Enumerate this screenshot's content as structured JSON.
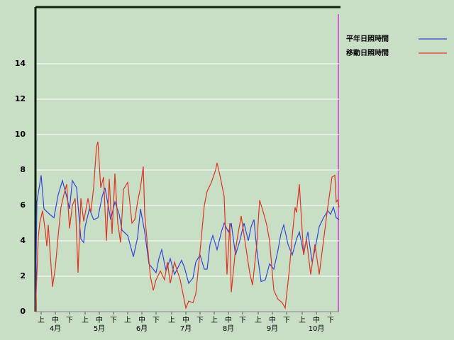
{
  "chart_data": {
    "type": "line",
    "xlim": [
      0,
      214
    ],
    "ylim": [
      0,
      17.2
    ],
    "yticks": [
      0,
      2,
      4,
      6,
      8,
      10,
      12,
      14
    ],
    "grid": true,
    "legend": "top-right",
    "xticks": [
      {
        "value": 4,
        "label": "上"
      },
      {
        "value": 14,
        "label": "中"
      },
      {
        "value": 24,
        "label": "下"
      },
      {
        "value": 35,
        "label": "上"
      },
      {
        "value": 45,
        "label": "中"
      },
      {
        "value": 55,
        "label": "下"
      },
      {
        "value": 65,
        "label": "上"
      },
      {
        "value": 75,
        "label": "中"
      },
      {
        "value": 85,
        "label": "下"
      },
      {
        "value": 96,
        "label": "上"
      },
      {
        "value": 106,
        "label": "中"
      },
      {
        "value": 116,
        "label": "下"
      },
      {
        "value": 126,
        "label": "上"
      },
      {
        "value": 136,
        "label": "中"
      },
      {
        "value": 146,
        "label": "下"
      },
      {
        "value": 157,
        "label": "上"
      },
      {
        "value": 167,
        "label": "中"
      },
      {
        "value": 177,
        "label": "下"
      },
      {
        "value": 188,
        "label": "上"
      },
      {
        "value": 198,
        "label": "中"
      },
      {
        "value": 208,
        "label": "下"
      }
    ],
    "months": [
      "4月",
      "5月",
      "6月",
      "7月",
      "8月",
      "9月",
      "10月"
    ],
    "series": [
      {
        "name": "平年日照時間",
        "color": "#3344dd",
        "x": [
          0,
          1,
          4,
          6,
          10,
          13,
          16,
          19,
          22,
          24,
          26,
          29,
          32,
          34,
          35,
          38,
          41,
          44,
          47,
          49,
          53,
          56,
          59,
          61,
          65,
          69,
          72,
          74,
          77,
          80,
          83,
          85,
          87,
          89,
          92,
          95,
          98,
          103,
          105,
          108,
          111,
          113,
          116,
          119,
          121,
          123,
          125,
          128,
          131,
          133,
          136,
          138,
          141,
          144,
          147,
          150,
          152,
          154,
          156,
          159,
          162,
          165,
          168,
          171,
          173,
          175,
          178,
          181,
          184,
          186,
          189,
          192,
          195,
          197,
          200,
          203,
          206,
          208,
          210,
          212,
          214
        ],
        "values": [
          0,
          6.2,
          7.7,
          5.8,
          5.5,
          5.3,
          6.6,
          7.4,
          6.5,
          5.8,
          7.4,
          7.0,
          4.1,
          3.9,
          4.8,
          5.8,
          5.2,
          5.3,
          6.5,
          7.0,
          5.2,
          6.2,
          5.5,
          4.6,
          4.3,
          3.1,
          4.2,
          5.8,
          4.5,
          2.7,
          2.4,
          2.2,
          3.0,
          3.5,
          2.3,
          3.0,
          2.1,
          2.9,
          2.5,
          1.6,
          1.9,
          2.8,
          3.2,
          2.4,
          2.4,
          3.8,
          4.3,
          3.5,
          4.5,
          5.0,
          4.5,
          5.0,
          3.2,
          4.0,
          5.0,
          4.0,
          4.8,
          5.2,
          3.5,
          1.7,
          1.8,
          2.7,
          2.4,
          3.5,
          4.4,
          4.9,
          3.8,
          3.2,
          4.1,
          4.5,
          3.3,
          4.5,
          2.8,
          3.5,
          4.8,
          5.3,
          5.7,
          5.5,
          5.9,
          5.3,
          5.2
        ]
      },
      {
        "name": "移動日照時間",
        "color": "#e03322",
        "x": [
          0,
          2,
          3,
          5,
          7,
          8,
          9,
          12,
          14,
          16,
          18,
          20,
          22,
          24,
          26,
          28,
          30,
          32,
          34,
          37,
          39,
          41,
          43,
          44,
          46,
          48,
          50,
          52,
          54,
          56,
          58,
          60,
          62,
          65,
          68,
          70,
          72,
          74,
          76,
          77,
          79,
          81,
          83,
          85,
          88,
          91,
          93,
          95,
          98,
          100,
          102,
          104,
          106,
          108,
          111,
          113,
          116,
          119,
          121,
          124,
          127,
          128,
          130,
          133,
          135,
          137,
          138,
          141,
          143,
          145,
          148,
          151,
          153,
          156,
          158,
          161,
          163,
          165,
          168,
          171,
          174,
          176,
          179,
          181,
          183,
          184,
          186,
          189,
          191,
          194,
          197,
          200,
          203,
          206,
          209,
          211,
          212,
          213,
          214
        ],
        "values": [
          0,
          4.2,
          5.0,
          5.7,
          4.5,
          3.7,
          4.9,
          1.4,
          2.5,
          4.3,
          5.9,
          6.6,
          7.2,
          4.7,
          6.0,
          6.4,
          2.2,
          6.4,
          5.1,
          6.4,
          5.6,
          7.0,
          9.3,
          9.6,
          7.0,
          7.6,
          4.0,
          7.5,
          4.4,
          7.8,
          5.0,
          3.9,
          6.9,
          7.3,
          5.0,
          5.2,
          6.2,
          7.0,
          8.2,
          5.5,
          3.7,
          2.0,
          1.2,
          1.8,
          2.3,
          1.8,
          2.8,
          1.6,
          2.8,
          2.3,
          1.8,
          1.0,
          0.2,
          0.6,
          0.5,
          1.0,
          3.4,
          6.0,
          6.8,
          7.3,
          8.0,
          8.4,
          7.7,
          6.5,
          2.1,
          5.0,
          1.1,
          3.5,
          4.5,
          5.4,
          3.8,
          2.2,
          1.5,
          3.8,
          6.3,
          5.5,
          4.9,
          4.0,
          1.2,
          0.7,
          0.5,
          0.2,
          2.4,
          4.3,
          5.9,
          5.6,
          7.2,
          3.2,
          4.1,
          2.1,
          3.8,
          2.1,
          4.0,
          5.9,
          7.6,
          7.7,
          6.2,
          6.3,
          5.9
        ]
      }
    ]
  }
}
